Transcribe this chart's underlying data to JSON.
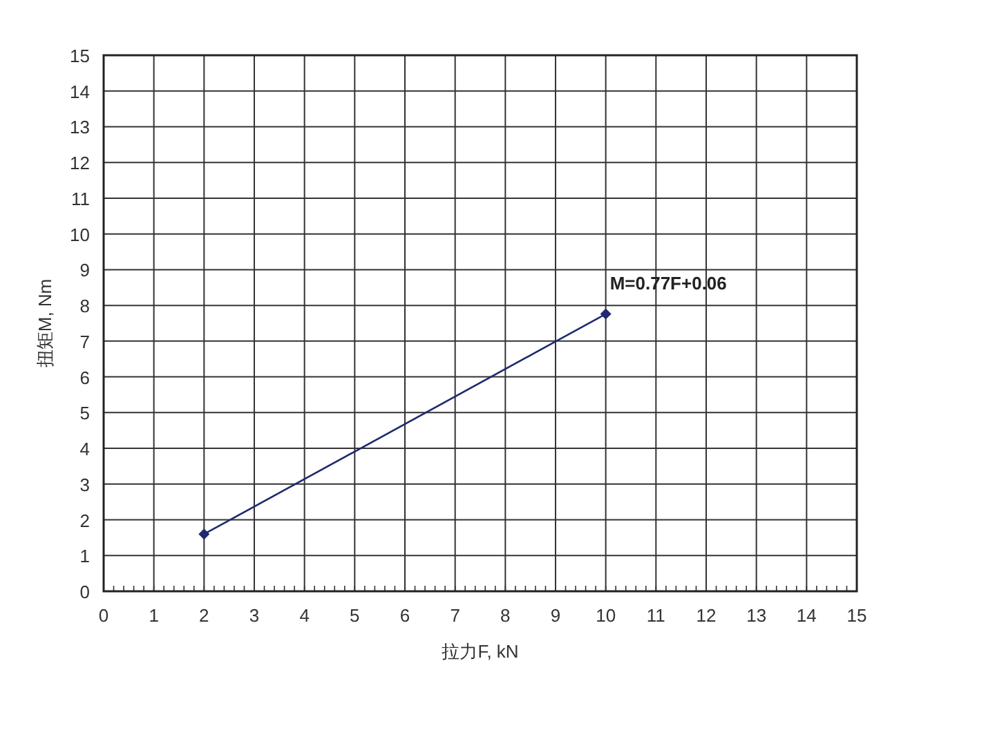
{
  "chart_data": {
    "type": "line",
    "xlabel": "拉力F, kN",
    "ylabel": "扭矩M, Nm",
    "x": [
      2,
      10
    ],
    "series": [
      {
        "color": "#1f2a6e",
        "values": [
          1.6,
          7.76
        ]
      }
    ],
    "xlim": [
      0,
      15
    ],
    "ylim": [
      0,
      15
    ],
    "xticks": [
      0,
      1,
      2,
      3,
      4,
      5,
      6,
      7,
      8,
      9,
      10,
      11,
      12,
      13,
      14,
      15
    ],
    "yticks": [
      0,
      1,
      2,
      3,
      4,
      5,
      6,
      7,
      8,
      9,
      10,
      11,
      12,
      13,
      14,
      15
    ],
    "grid": true,
    "marker": "diamond",
    "line_style": "solid",
    "annotations": [
      {
        "text": "M=0.77F+0.06",
        "x": 10,
        "y": 7.76
      }
    ]
  }
}
